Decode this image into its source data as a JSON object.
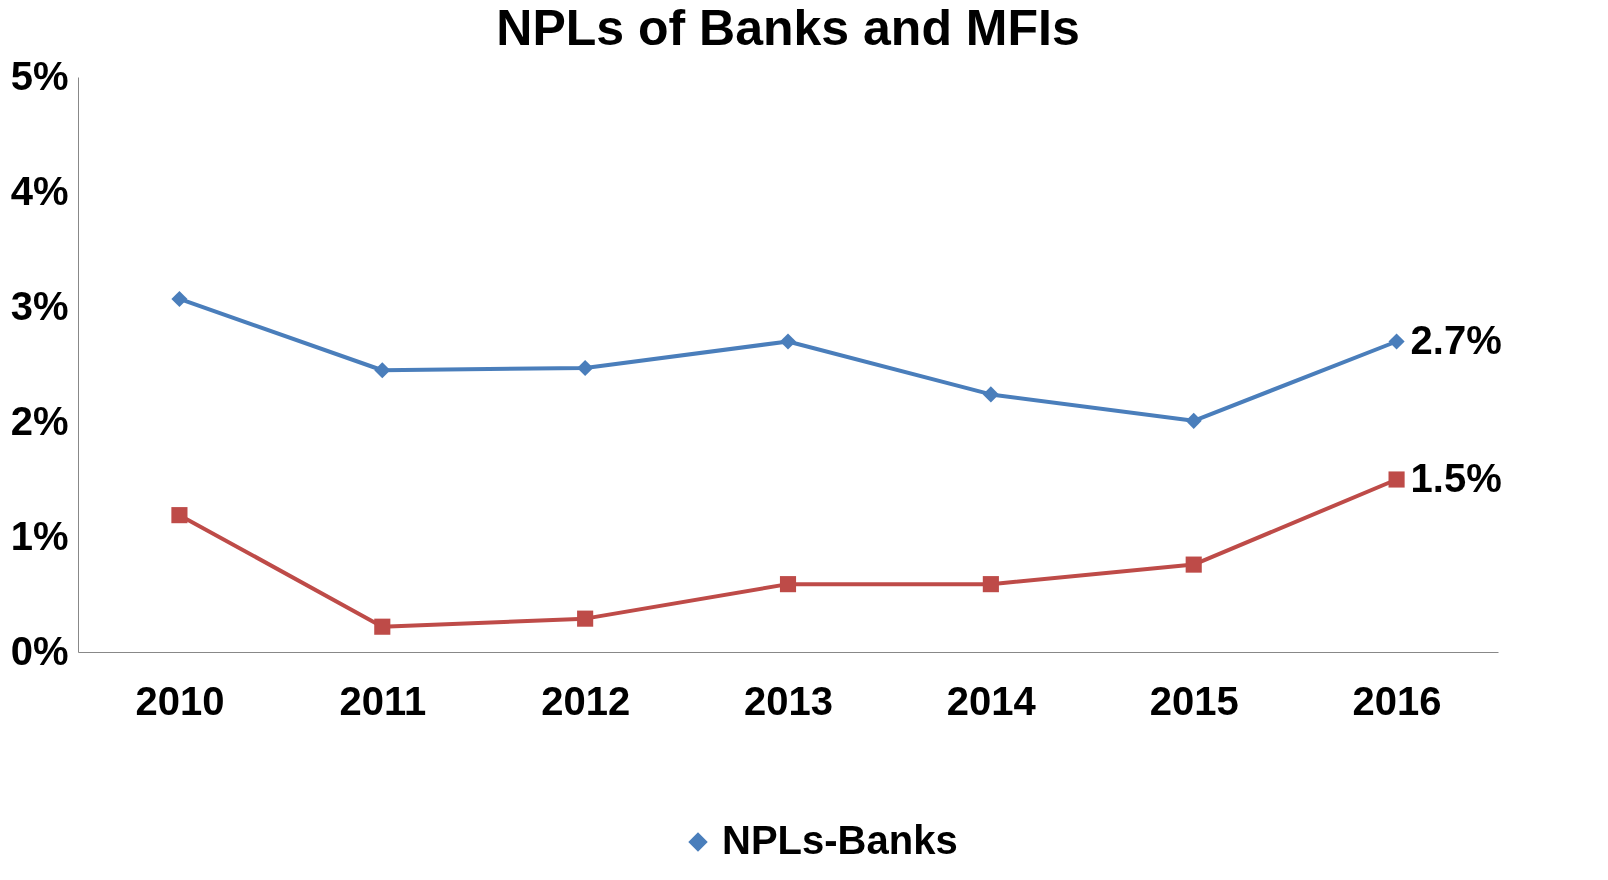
{
  "chart_data": {
    "type": "line",
    "title": "NPLs of Banks and MFIs",
    "categories": [
      "2010",
      "2011",
      "2012",
      "2013",
      "2014",
      "2015",
      "2016"
    ],
    "series": [
      {
        "name": "NPLs-Banks",
        "color": "#4a7ebb",
        "marker": "diamond",
        "values": [
          3.07,
          2.45,
          2.47,
          2.7,
          2.24,
          2.01,
          2.7
        ],
        "value_labels": [
          null,
          null,
          null,
          null,
          null,
          null,
          "2.7%"
        ]
      },
      {
        "color": "#be4b48",
        "marker": "square",
        "values": [
          1.19,
          0.22,
          0.29,
          0.59,
          0.59,
          0.76,
          1.5
        ],
        "value_labels": [
          null,
          null,
          null,
          null,
          null,
          null,
          "1.5%"
        ]
      }
    ],
    "ylim": [
      0,
      5
    ],
    "yticks": [
      {
        "value": 0,
        "label": "0%"
      },
      {
        "value": 1,
        "label": "1%"
      },
      {
        "value": 2,
        "label": "2%"
      },
      {
        "value": 3,
        "label": "3%"
      },
      {
        "value": 4,
        "label": "4%"
      },
      {
        "value": 5,
        "label": "5%"
      }
    ],
    "grid": false,
    "legend": "bottom",
    "line_style": "solid"
  }
}
